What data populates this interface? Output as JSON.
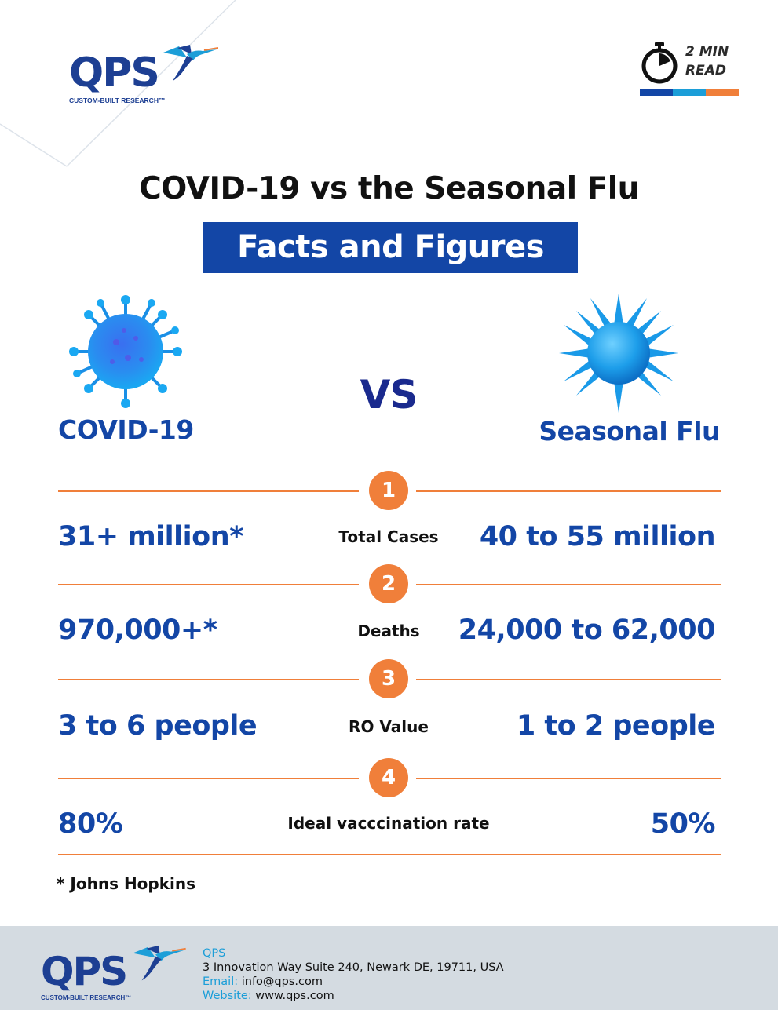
{
  "brand": {
    "name": "QPS",
    "tagline": "CUSTOM-BUILT RESEARCH™",
    "colors": {
      "navy": "#1d3f93",
      "blue": "#1346a6",
      "orange": "#f07f3a",
      "light_blue": "#1c9ed8"
    }
  },
  "read_time": {
    "line1": "2 MIN",
    "line2": "READ",
    "bar_colors": [
      "#1346a6",
      "#1c9ed8",
      "#f07f3a"
    ]
  },
  "header": {
    "title": "COVID-19 vs the Seasonal Flu",
    "subtitle": "Facts and Figures"
  },
  "compare": {
    "left": "COVID-19",
    "vs": "VS",
    "right": "Seasonal Flu"
  },
  "rows": [
    {
      "number": "1",
      "metric": "Total Cases",
      "left": "31+ million*",
      "right": "40 to 55 million"
    },
    {
      "number": "2",
      "metric": "Deaths",
      "left": "970,000+*",
      "right": "24,000 to 62,000"
    },
    {
      "number": "3",
      "metric": "RO Value",
      "left": "3 to 6 people",
      "right": "1 to 2 people"
    },
    {
      "number": "4",
      "metric": "Ideal vacccination rate",
      "left": "80%",
      "right": "50%"
    }
  ],
  "source_note": "* Johns Hopkins",
  "footer": {
    "company": "QPS",
    "address": "3 Innovation Way Suite 240, Newark DE, 19711, USA",
    "email_label": "Email:",
    "email": "info@qps.com",
    "website_label": "Website:",
    "website": "www.qps.com"
  }
}
